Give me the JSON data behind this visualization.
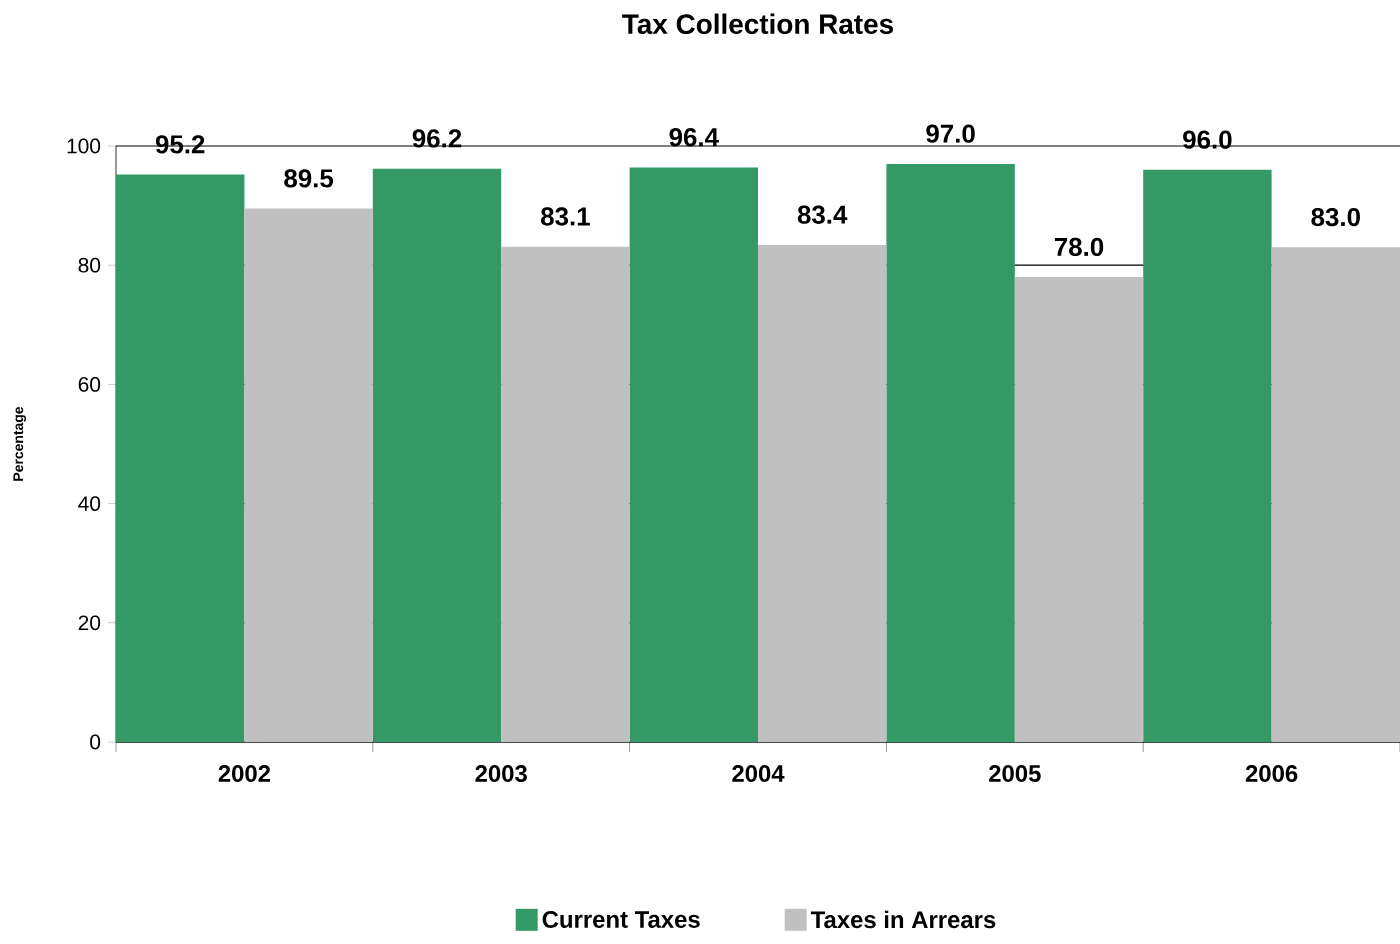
{
  "chart_data": {
    "type": "bar",
    "title": "Tax Collection Rates",
    "ylabel": "Percentage",
    "categories": [
      "2002",
      "2003",
      "2004",
      "2005",
      "2006"
    ],
    "series": [
      {
        "name": "Current Taxes",
        "color": "#339966",
        "values": [
          95.2,
          96.2,
          96.4,
          97.0,
          96.0
        ],
        "value_labels": [
          "95.2",
          "96.2",
          "96.4",
          "97.0",
          "96.0"
        ]
      },
      {
        "name": "Taxes in Arrears",
        "color": "#c0c0c0",
        "values": [
          89.5,
          83.1,
          83.4,
          78.0,
          83.0
        ],
        "value_labels": [
          "89.5",
          "83.1",
          "83.4",
          "78.0",
          "83.0"
        ]
      }
    ],
    "ylim": [
      0,
      100
    ],
    "yticks": [
      0,
      20,
      40,
      60,
      80,
      100
    ],
    "grid": "y",
    "legend": "bottom"
  }
}
